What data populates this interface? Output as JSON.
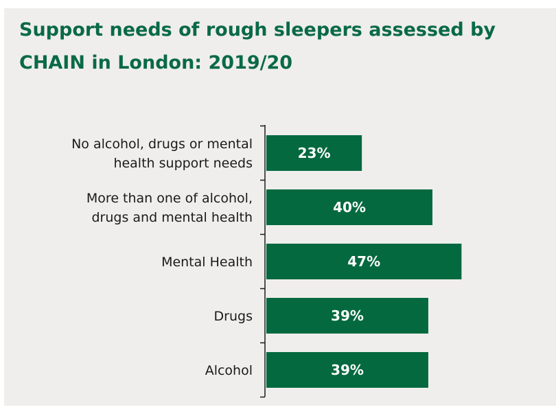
{
  "colors": {
    "bar": "#04693f",
    "title": "#0a6a45",
    "background": "#efeeec",
    "axis": "#1a1a1a"
  },
  "chart_data": {
    "type": "bar",
    "orientation": "horizontal",
    "title": "Support needs of rough sleepers assessed by CHAIN in London: 2019/20",
    "categories": [
      "No alcohol, drugs or mental health support needs",
      "More than one of alcohol, drugs and mental health",
      "Mental Health",
      "Drugs",
      "Alcohol"
    ],
    "values": [
      23,
      40,
      47,
      39,
      39
    ],
    "value_labels": [
      "23%",
      "40%",
      "47%",
      "39%",
      "39%"
    ],
    "unit": "%",
    "xlim": [
      0,
      50
    ],
    "grid": false,
    "legend": "none"
  }
}
